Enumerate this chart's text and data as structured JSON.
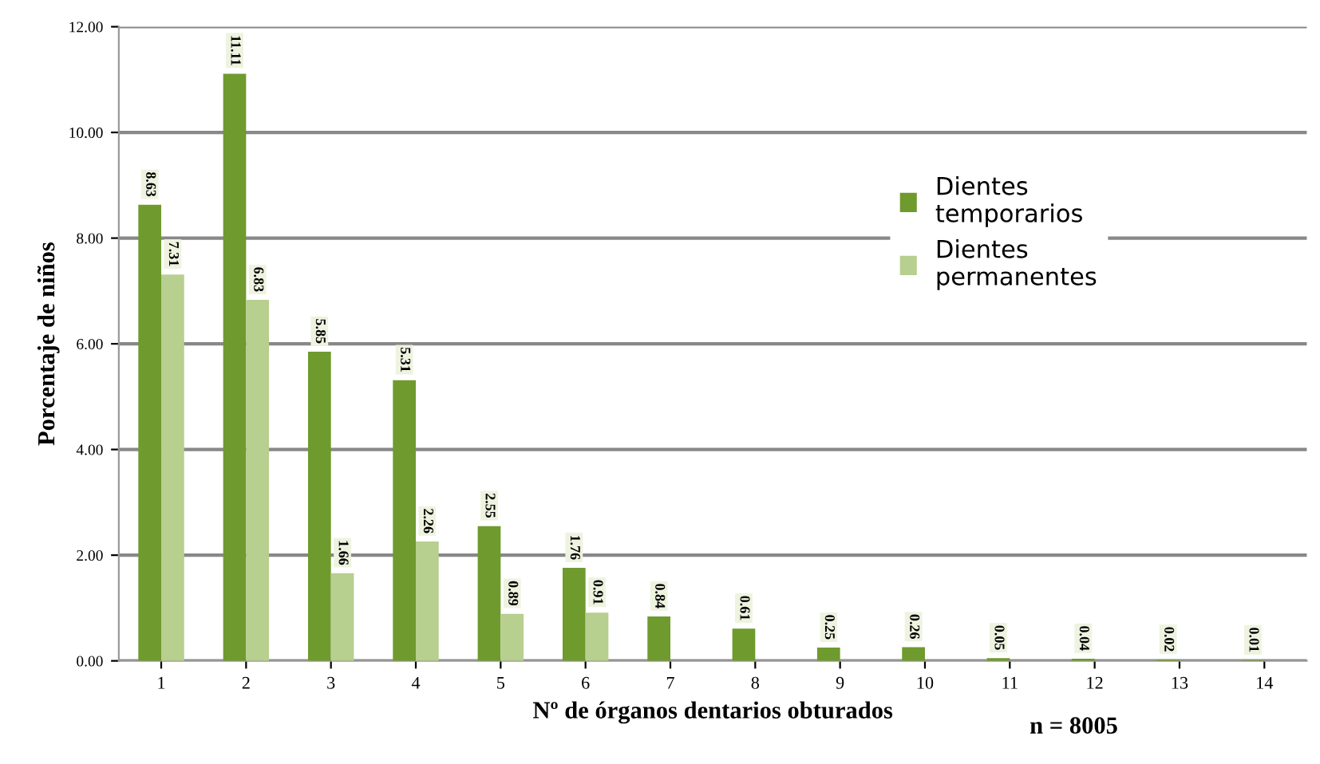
{
  "chart_data": {
    "type": "bar",
    "xlabel": "Nº de órganos dentarios obturados",
    "ylabel": "Porcentaje de niños",
    "categories": [
      "1",
      "2",
      "3",
      "4",
      "5",
      "6",
      "7",
      "8",
      "9",
      "10",
      "11",
      "12",
      "13",
      "14"
    ],
    "series": [
      {
        "name": "Dientes temporarios",
        "color": "#6f9a2e",
        "values": [
          8.63,
          11.11,
          5.85,
          5.31,
          2.55,
          1.76,
          0.84,
          0.61,
          0.25,
          0.26,
          0.05,
          0.04,
          0.02,
          0.01
        ],
        "value_labels": [
          "8.63",
          "11.11",
          "5.85",
          "5.31",
          "2.55",
          "1.76",
          "0.84",
          "0.61",
          "0.25",
          "0.26",
          "0.05",
          "0.04",
          "0.02",
          "0.01"
        ]
      },
      {
        "name": "Dientes permanentes",
        "color": "#b7cf8f",
        "values": [
          7.31,
          6.83,
          1.66,
          2.26,
          0.89,
          0.91,
          null,
          null,
          null,
          null,
          null,
          null,
          null,
          null
        ],
        "value_labels": [
          "7.31",
          "6.83",
          "1.66",
          "2.26",
          "0.89",
          "0.91",
          null,
          null,
          null,
          null,
          null,
          null,
          null,
          null
        ]
      }
    ],
    "ylim": [
      0,
      12
    ],
    "yticks": [
      {
        "value": 0,
        "label": "0.00"
      },
      {
        "value": 2,
        "label": "2.00"
      },
      {
        "value": 4,
        "label": "4.00"
      },
      {
        "value": 6,
        "label": "6.00"
      },
      {
        "value": 8,
        "label": "8.00"
      },
      {
        "value": 10,
        "label": "10.00"
      },
      {
        "value": 12,
        "label": "12.00"
      }
    ],
    "grid": "y",
    "legend": "top right",
    "annotations": [
      "n = 8005"
    ]
  }
}
